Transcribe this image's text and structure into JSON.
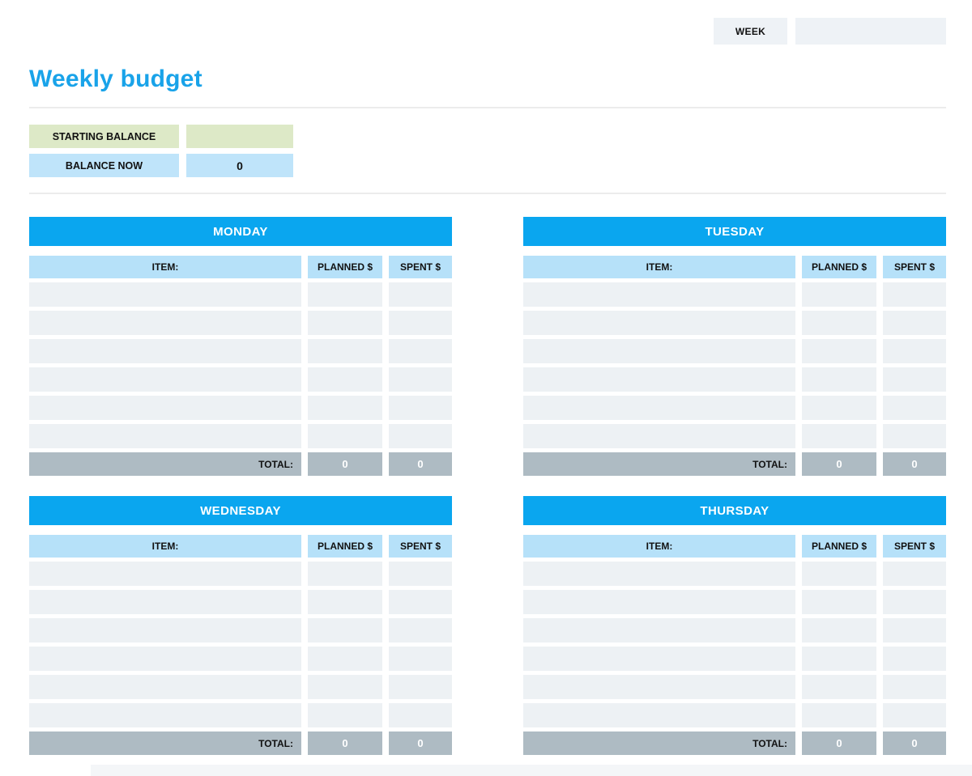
{
  "page": {
    "title": "Weekly budget",
    "week_label": "WEEK",
    "week_value": ""
  },
  "balance": {
    "starting_label": "STARTING BALANCE",
    "starting_value": "",
    "now_label": "BALANCE NOW",
    "now_value": "0"
  },
  "labels": {
    "item": "ITEM:",
    "planned": "PLANNED $",
    "spent": "SPENT $",
    "total": "TOTAL:"
  },
  "days": [
    {
      "name": "MONDAY",
      "rows": [
        {
          "item": "",
          "planned": "",
          "spent": ""
        },
        {
          "item": "",
          "planned": "",
          "spent": ""
        },
        {
          "item": "",
          "planned": "",
          "spent": ""
        },
        {
          "item": "",
          "planned": "",
          "spent": ""
        },
        {
          "item": "",
          "planned": "",
          "spent": ""
        },
        {
          "item": "",
          "planned": "",
          "spent": ""
        }
      ],
      "total_planned": "0",
      "total_spent": "0"
    },
    {
      "name": "TUESDAY",
      "rows": [
        {
          "item": "",
          "planned": "",
          "spent": ""
        },
        {
          "item": "",
          "planned": "",
          "spent": ""
        },
        {
          "item": "",
          "planned": "",
          "spent": ""
        },
        {
          "item": "",
          "planned": "",
          "spent": ""
        },
        {
          "item": "",
          "planned": "",
          "spent": ""
        },
        {
          "item": "",
          "planned": "",
          "spent": ""
        }
      ],
      "total_planned": "0",
      "total_spent": "0"
    },
    {
      "name": "WEDNESDAY",
      "rows": [
        {
          "item": "",
          "planned": "",
          "spent": ""
        },
        {
          "item": "",
          "planned": "",
          "spent": ""
        },
        {
          "item": "",
          "planned": "",
          "spent": ""
        },
        {
          "item": "",
          "planned": "",
          "spent": ""
        },
        {
          "item": "",
          "planned": "",
          "spent": ""
        },
        {
          "item": "",
          "planned": "",
          "spent": ""
        }
      ],
      "total_planned": "0",
      "total_spent": "0"
    },
    {
      "name": "THURSDAY",
      "rows": [
        {
          "item": "",
          "planned": "",
          "spent": ""
        },
        {
          "item": "",
          "planned": "",
          "spent": ""
        },
        {
          "item": "",
          "planned": "",
          "spent": ""
        },
        {
          "item": "",
          "planned": "",
          "spent": ""
        },
        {
          "item": "",
          "planned": "",
          "spent": ""
        },
        {
          "item": "",
          "planned": "",
          "spent": ""
        }
      ],
      "total_planned": "0",
      "total_spent": "0"
    }
  ],
  "colors": {
    "accent-blue": "#0aa6ef",
    "title-blue": "#19a3e9",
    "light-blue": "#b6e1f9",
    "balance-blue": "#bfe4fa",
    "green": "#dde9c7",
    "row-gray": "#edf1f4",
    "total-gray": "#aebbc3",
    "week-gray": "#eef2f6"
  }
}
